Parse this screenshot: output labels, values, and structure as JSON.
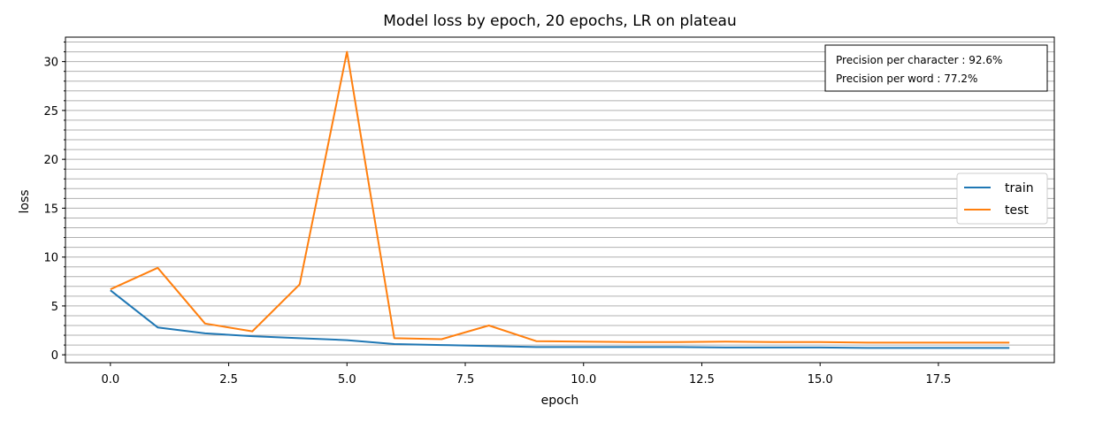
{
  "chart_data": {
    "type": "line",
    "title": "Model loss by epoch, 20 epochs, LR on plateau",
    "xlabel": "epoch",
    "ylabel": "loss",
    "xlim": [
      -0.95,
      19.95
    ],
    "ylim": [
      -0.8,
      32.5
    ],
    "x_ticks": [
      0.0,
      2.5,
      5.0,
      7.5,
      10.0,
      12.5,
      15.0,
      17.5
    ],
    "x_tick_labels": [
      "0.0",
      "2.5",
      "5.0",
      "7.5",
      "10.0",
      "12.5",
      "15.0",
      "17.5"
    ],
    "y_ticks": [
      0,
      5,
      10,
      15,
      20,
      25,
      30
    ],
    "y_tick_labels": [
      "0",
      "5",
      "10",
      "15",
      "20",
      "25",
      "30"
    ],
    "y_minor_step": 1,
    "grid": "horizontal, every 1 loss unit",
    "x": [
      0,
      1,
      2,
      3,
      4,
      5,
      6,
      7,
      8,
      9,
      10,
      11,
      12,
      13,
      14,
      15,
      16,
      17,
      18,
      19
    ],
    "series": [
      {
        "name": "train",
        "color": "#1f77b4",
        "values": [
          6.6,
          2.8,
          2.2,
          1.9,
          1.7,
          1.5,
          1.1,
          1.0,
          0.9,
          0.8,
          0.8,
          0.8,
          0.8,
          0.75,
          0.75,
          0.75,
          0.7,
          0.7,
          0.7,
          0.7
        ]
      },
      {
        "name": "test",
        "color": "#ff7f0e",
        "values": [
          6.7,
          8.9,
          3.2,
          2.4,
          7.2,
          31.0,
          1.7,
          1.6,
          3.0,
          1.4,
          1.35,
          1.3,
          1.3,
          1.35,
          1.3,
          1.3,
          1.25,
          1.25,
          1.25,
          1.25
        ]
      }
    ],
    "legend": {
      "position": "center-right"
    },
    "annotation": {
      "position": "top-right",
      "lines": [
        "Precision per character : 92.6%",
        "Precision per word : 77.2%"
      ]
    }
  }
}
